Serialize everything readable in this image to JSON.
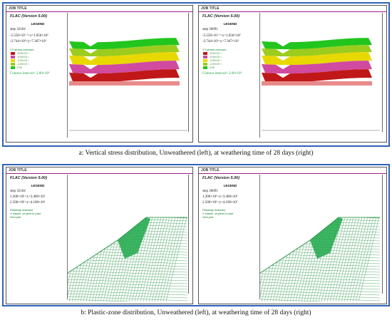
{
  "top_panel": {
    "caption": "a: Vertical stress distribution, Unweathered (left), at weathering time of 28 days (right)",
    "left": {
      "job_title": "JOB TITLE",
      "program": "FLAC (Version 5.00)",
      "legend_title": "LEGEND",
      "step": "step 32164",
      "x_range": "-5.556×10⁻¹<x<1.056×10²",
      "y_range": "-3.744×10¹<y<7.367×10¹",
      "contour_label": "YY-stress contours",
      "contours": [
        "-8.00×10⁻¹",
        "-6.00×10⁻¹",
        "-4.00×10⁻¹",
        "-2.00×10⁻¹",
        "0.00"
      ],
      "interval": "Contour interval= 2.00×10⁴"
    },
    "right": {
      "job_title": "JOB TITLE",
      "program": "FLAC (Version 5.00)",
      "legend_title": "LEGEND",
      "step": "step 36091",
      "x_range": "-5.556×10⁻¹<x<1.056×10²",
      "y_range": "-3.744×10¹<y<7.367×10¹",
      "contour_label": "YY-stress contours",
      "contours": [
        "-8.00×10⁻¹",
        "-6.00×10⁻¹",
        "-4.00×10⁻¹",
        "-2.00×10⁻¹",
        "0.00"
      ],
      "interval": "Contour interval= 2.00×10⁴"
    },
    "contour_colors": [
      "#c01818",
      "#d04aa0",
      "#e8d800",
      "#9ccc1e",
      "#22c51e"
    ]
  },
  "bottom_panel": {
    "caption": "b: Plastic-zone distribution, Unweathered (left), at weathering time of 28 days (right)",
    "left": {
      "job_title": "JOB TITLE",
      "program": "FLAC (Version 5.00)",
      "legend_title": "LEGEND",
      "step": "step 32164",
      "x_range": "1.200×10¹<x<3.400×10¹",
      "y_range": "2.500×10¹<y<4.100×10¹",
      "plastic_label": "Plasticity Indicator",
      "plastic_detail": "X elastic, at yield in past",
      "grid_label": "Grid plot"
    },
    "right": {
      "job_title": "JOB TITLE",
      "program": "FLAC (Version 5.00)",
      "legend_title": "LEGEND",
      "step": "step 36091",
      "x_range": "1.200×10¹<x<3.400×10¹",
      "y_range": "2.500×10¹<y<4.100×10¹",
      "plastic_label": "Plasticity Indicator",
      "plastic_detail": "X elastic, at yield in past",
      "grid_label": "Grid plot"
    },
    "mesh_color": "#1a8a3a",
    "yield_color": "#1fa84a"
  }
}
